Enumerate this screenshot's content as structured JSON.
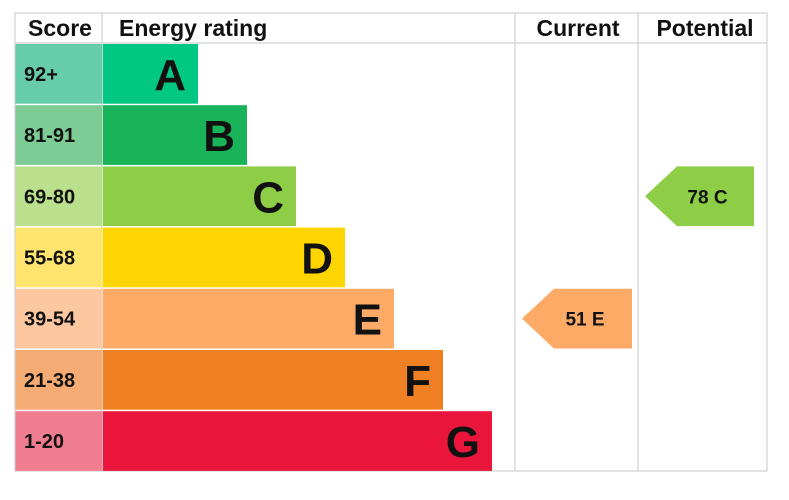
{
  "chart_data": {
    "type": "bar",
    "headers": {
      "score": "Score",
      "rating": "Energy rating",
      "current": "Current",
      "potential": "Potential"
    },
    "bands": [
      {
        "letter": "A",
        "range": "92+",
        "min": 92,
        "max": 100,
        "color": "#00c781",
        "score_color": "#66ccaa"
      },
      {
        "letter": "B",
        "range": "81-91",
        "min": 81,
        "max": 91,
        "color": "#19b459",
        "score_color": "#7dcc95"
      },
      {
        "letter": "C",
        "range": "69-80",
        "min": 69,
        "max": 80,
        "color": "#8dce46",
        "score_color": "#badf8d"
      },
      {
        "letter": "D",
        "range": "55-68",
        "min": 55,
        "max": 68,
        "color": "#ffd500",
        "score_color": "#ffe46e"
      },
      {
        "letter": "E",
        "range": "39-54",
        "min": 39,
        "max": 54,
        "color": "#fcaa65",
        "score_color": "#fdc8a0"
      },
      {
        "letter": "F",
        "range": "21-38",
        "min": 21,
        "max": 38,
        "color": "#ef8023",
        "score_color": "#f4ab74"
      },
      {
        "letter": "G",
        "range": "1-20",
        "min": 1,
        "max": 20,
        "color": "#e9153b",
        "score_color": "#f07e90"
      }
    ],
    "current": {
      "value": 51,
      "band": "E",
      "label": "51 E",
      "color": "#fcaa65"
    },
    "potential": {
      "value": 78,
      "band": "C",
      "label": "78 C",
      "color": "#8dce46"
    }
  }
}
